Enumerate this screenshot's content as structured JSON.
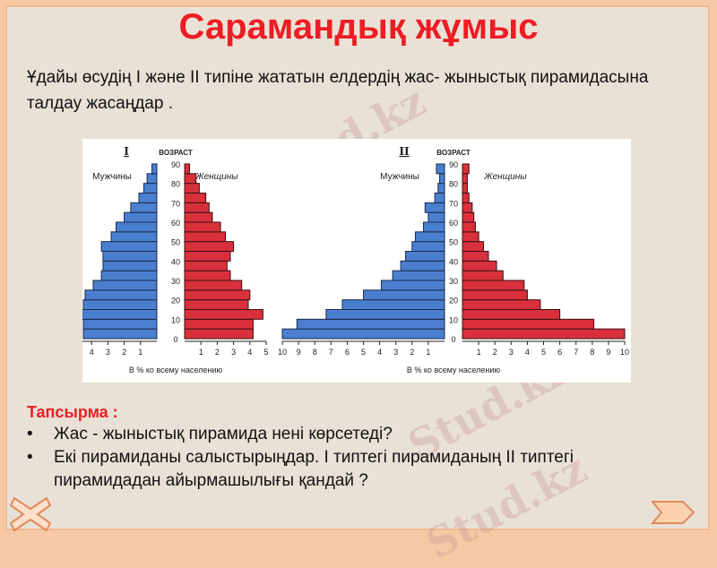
{
  "title": "Сарамандық жұмыс",
  "intro": "Ұдайы өсудің І  және  ІІ  типіне жататын  елдердің  жас- жыныстық пирамидасына  талдау    жасаңдар .",
  "task_label": "Тапсырма :",
  "tasks": [
    "Жас - жыныстық  пирамида нені көрсетеді?",
    "Екі пирамиданы салыстырыңдар. І  типтегі пирамиданың  ІІ  типтегі пирамидадан  айырмашылығы қандай ?"
  ],
  "watermark": "Stud.kz",
  "nav": {
    "close_icon": "close-x-icon",
    "next_icon": "chevron-right-icon"
  },
  "colors": {
    "male": "#4a7fd0",
    "female": "#d9303c",
    "title": "#ee1c24"
  },
  "chart_data": [
    {
      "type": "bar",
      "title": "I",
      "age_axis_label": "ВОЗРАСТ",
      "xlabel": "В % ко всему населению",
      "age_ticks": [
        "0",
        "10",
        "20",
        "30",
        "40",
        "50",
        "60",
        "70",
        "80",
        "90"
      ],
      "x_ticks": [
        "5",
        "4",
        "3",
        "2",
        "1",
        "1",
        "2",
        "3",
        "4",
        "5"
      ],
      "xlim": [
        0,
        5
      ],
      "age_groups": [
        "0",
        "5",
        "10",
        "15",
        "20",
        "25",
        "30",
        "35",
        "40",
        "45",
        "50",
        "55",
        "60",
        "65",
        "70",
        "75",
        "80",
        "85"
      ],
      "series": [
        {
          "name": "Мужчины",
          "values": [
            4.5,
            4.5,
            4.9,
            4.5,
            4.4,
            3.9,
            3.4,
            3.3,
            3.3,
            3.4,
            2.8,
            2.5,
            2.0,
            1.6,
            1.1,
            0.8,
            0.6,
            0.3
          ]
        },
        {
          "name": "Женщины",
          "values": [
            4.2,
            4.2,
            4.8,
            3.9,
            4.0,
            3.5,
            2.8,
            2.6,
            2.8,
            3.0,
            2.5,
            2.2,
            1.7,
            1.5,
            1.3,
            0.9,
            0.7,
            0.3
          ]
        }
      ]
    },
    {
      "type": "bar",
      "title": "II",
      "age_axis_label": "ВОЗРАСТ",
      "xlabel": "В % ко всему населению",
      "age_ticks": [
        "0",
        "10",
        "20",
        "30",
        "40",
        "50",
        "60",
        "70",
        "80",
        "90"
      ],
      "x_ticks": [
        "10",
        "9",
        "8",
        "7",
        "6",
        "5",
        "4",
        "3",
        "2",
        "1",
        "1",
        "2",
        "3",
        "4",
        "5",
        "6",
        "7",
        "8",
        "9",
        "10"
      ],
      "xlim": [
        0,
        10
      ],
      "age_groups": [
        "0",
        "5",
        "10",
        "15",
        "20",
        "25",
        "30",
        "35",
        "40",
        "45",
        "50",
        "55",
        "60",
        "65",
        "70",
        "75",
        "80",
        "85"
      ],
      "series": [
        {
          "name": "Мужчины",
          "values": [
            10,
            9.1,
            7.3,
            6.3,
            5.0,
            3.9,
            3.2,
            2.7,
            2.4,
            2.0,
            1.8,
            1.3,
            1.0,
            1.2,
            0.6,
            0.4,
            0.3,
            0.5
          ]
        },
        {
          "name": "Женщины",
          "values": [
            10,
            8.1,
            6.0,
            4.8,
            4.0,
            3.8,
            2.5,
            2.1,
            1.6,
            1.3,
            1.0,
            0.8,
            0.7,
            0.6,
            0.4,
            0.3,
            0.3,
            0.4
          ]
        }
      ]
    }
  ]
}
